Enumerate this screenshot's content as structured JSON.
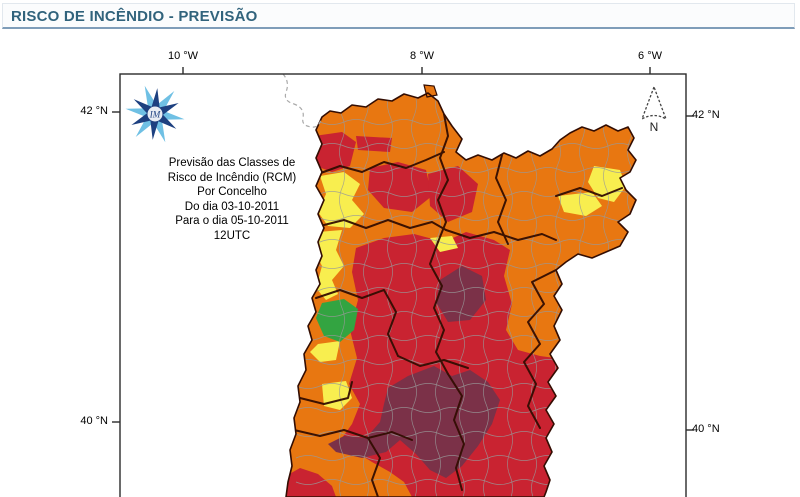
{
  "header": {
    "title": "RISCO DE INCÊNDIO - PREVISÃO"
  },
  "map": {
    "axes": {
      "top": [
        "10 °W",
        "8 °W",
        "6 °W"
      ],
      "left": [
        "42 °N",
        "40 °N"
      ],
      "right": [
        "42 °N",
        "40 °N"
      ]
    },
    "annotation_lines": [
      "Previsão das Classes de",
      "Risco de Incêndio (RCM)",
      "Por Concelho",
      "Do dia 03-10-2011",
      "Para o dia 05-10-2011",
      "12UTC"
    ],
    "north_label": "N",
    "logo_text": "IM",
    "colors": {
      "orange": "#E87711",
      "red": "#C92331",
      "dark_red": "#7B3148",
      "yellow": "#F8EE4F",
      "green": "#33A441",
      "logo_light_blue": "#6FC0E4",
      "logo_navy": "#1D4080"
    }
  }
}
